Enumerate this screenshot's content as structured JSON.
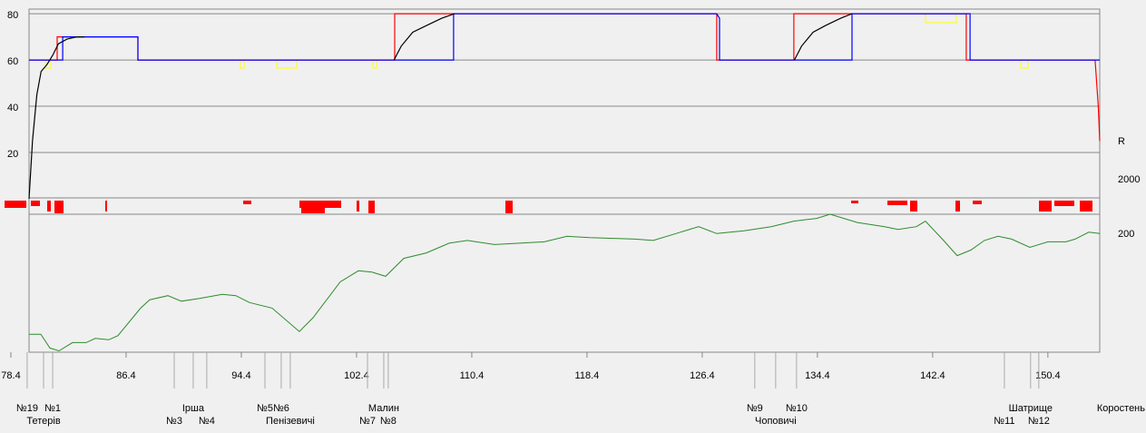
{
  "chart_data": {
    "type": "line",
    "xlim": [
      79.66,
      154.0
    ],
    "xticks": [
      {
        "value": 78.4,
        "label": "78.4"
      },
      {
        "value": 86.4,
        "label": "86.4"
      },
      {
        "value": 94.4,
        "label": "94.4"
      },
      {
        "value": 102.4,
        "label": "102.4"
      },
      {
        "value": 110.4,
        "label": "110.4"
      },
      {
        "value": 118.4,
        "label": "118.4"
      },
      {
        "value": 126.4,
        "label": "126.4"
      },
      {
        "value": 134.4,
        "label": "134.4"
      },
      {
        "value": 142.4,
        "label": "142.4"
      },
      {
        "value": 150.4,
        "label": "150.4"
      }
    ],
    "ylim": [
      0,
      82
    ],
    "yticks": [
      20,
      40,
      60,
      80
    ],
    "grid": true,
    "right_labels": [
      "R",
      "2000",
      "200"
    ],
    "speed_series": [
      {
        "color": "#ff0000",
        "x": [
          79.66,
          81.61,
          81.61,
          87.22,
          87.22,
          105.05,
          105.05,
          127.41,
          127.41,
          132.76,
          132.76,
          144.73,
          144.73,
          153.68,
          153.9,
          154.0
        ],
        "values": [
          60,
          60,
          70,
          70,
          60,
          60,
          80,
          80,
          60,
          60,
          80,
          80,
          60,
          60,
          40,
          25
        ]
      },
      {
        "color": "#0000ff",
        "x": [
          79.66,
          82.0,
          82.0,
          87.22,
          87.22,
          109.14,
          109.14,
          127.41,
          127.6,
          127.6,
          132.76,
          136.8,
          136.8,
          145.0,
          145.0,
          154.0
        ],
        "values": [
          60,
          60,
          70,
          70,
          60,
          60,
          80,
          80,
          78,
          60,
          60,
          60,
          80,
          80,
          60,
          60
        ]
      },
      {
        "color": "#000000",
        "x": [
          79.66,
          79.9,
          80.2,
          80.5,
          80.9,
          81.3,
          81.7,
          82.3,
          83.0,
          83.5,
          95.0,
          105.0,
          105.5,
          106.3,
          107.3,
          108.3,
          109.2,
          120.0,
          132.8,
          133.3,
          134.1,
          135.0,
          136.0,
          136.8
        ],
        "values": [
          0,
          25,
          45,
          55,
          58,
          62,
          67,
          69,
          70,
          70,
          null,
          60,
          66,
          72,
          75,
          78,
          80,
          null,
          60,
          66,
          72,
          75,
          78,
          80
        ]
      }
    ],
    "profile": {
      "color": "#2e8b2e",
      "ylim": [
        0,
        100
      ],
      "x": [
        79.66,
        80.48,
        81.11,
        81.74,
        82.68,
        83.63,
        84.26,
        85.2,
        85.83,
        87.41,
        88.04,
        89.3,
        90.24,
        91.5,
        93.08,
        94.02,
        94.97,
        96.54,
        98.43,
        99.38,
        101.27,
        102.53,
        103.47,
        104.42,
        105.68,
        107.25,
        108.83,
        110.09,
        111.98,
        115.44,
        117.02,
        118.59,
        121.74,
        123.0,
        124.57,
        126.15,
        127.41,
        129.3,
        131.19,
        132.76,
        134.34,
        135.28,
        137.17,
        139.06,
        140.0,
        141.27,
        141.9,
        143.16,
        144.1,
        145.05,
        145.99,
        146.94,
        147.88,
        149.14,
        150.4,
        151.66,
        152.29,
        153.24,
        154.0
      ],
      "values": [
        13,
        13,
        3,
        1,
        7,
        7,
        10,
        9,
        12,
        32,
        38,
        41,
        37,
        39,
        42,
        41,
        36,
        32,
        15,
        25,
        51,
        59,
        58,
        55,
        68,
        72,
        79,
        81,
        78,
        80,
        84,
        83,
        82,
        81,
        86,
        91,
        86,
        88,
        91,
        95,
        97,
        100,
        94,
        91,
        89,
        91,
        95,
        81,
        70,
        74,
        81,
        84,
        82,
        76,
        80,
        80,
        82,
        87,
        86
      ]
    },
    "stations": [
      {
        "label": "№19",
        "km": 79.53
      },
      {
        "label": "№1",
        "km": 81.3
      },
      {
        "label": "Тетерів",
        "km": 80.67
      },
      {
        "label": "Ірша",
        "km": 91.06
      },
      {
        "label": "№3",
        "km": 89.74
      },
      {
        "label": "№4",
        "km": 92.0
      },
      {
        "label": "№5",
        "km": 96.04
      },
      {
        "label": "№6",
        "km": 97.17
      },
      {
        "label": "Пенізевичі",
        "km": 97.8
      },
      {
        "label": "Малин",
        "km": 104.29
      },
      {
        "label": "№7",
        "km": 103.16
      },
      {
        "label": "№8",
        "km": 104.6
      },
      {
        "label": "№9",
        "km": 130.05
      },
      {
        "label": "№10",
        "km": 132.95
      },
      {
        "label": "Чоповичі",
        "km": 131.5
      },
      {
        "label": "Шатрище",
        "km": 149.2
      },
      {
        "label": "№11",
        "km": 147.38
      },
      {
        "label": "№12",
        "km": 149.77
      },
      {
        "label": "Коростень",
        "km": 155.75
      }
    ]
  }
}
